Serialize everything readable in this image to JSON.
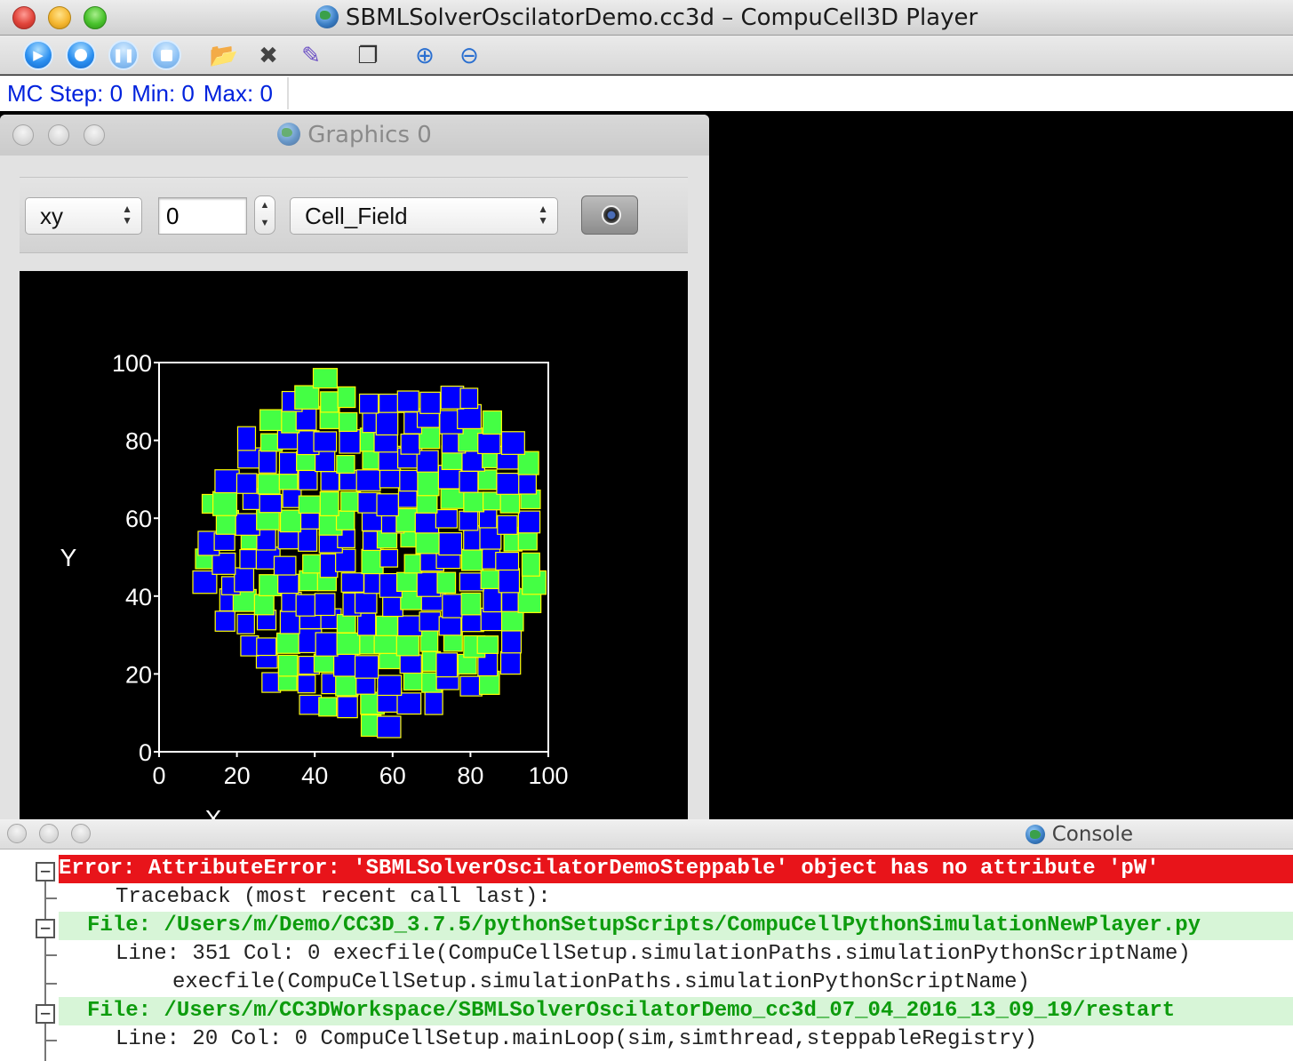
{
  "window": {
    "title": "SBMLSolverOscilatorDemo.cc3d – CompuCell3D Player"
  },
  "toolbar": {
    "buttons": [
      {
        "name": "run",
        "icon": "play-icon"
      },
      {
        "name": "step",
        "icon": "step-icon"
      },
      {
        "name": "pause",
        "icon": "pause-icon"
      },
      {
        "name": "stop",
        "icon": "stop-icon"
      },
      {
        "name": "open",
        "icon": "folder-open-icon"
      },
      {
        "name": "configure",
        "icon": "tools-icon"
      },
      {
        "name": "edit",
        "icon": "edit-icon"
      },
      {
        "name": "new-window",
        "icon": "windows-icon"
      },
      {
        "name": "zoom-in",
        "icon": "zoom-in-icon"
      },
      {
        "name": "zoom-out",
        "icon": "zoom-out-icon"
      }
    ]
  },
  "status": {
    "mc_step": "MC Step: 0",
    "min": "Min: 0",
    "max": "Max: 0"
  },
  "graphics": {
    "title": "Graphics 0",
    "plane": "xy",
    "position": "0",
    "field": "Cell_Field"
  },
  "chart_data": {
    "type": "heatmap",
    "description_field": "Cell_Field",
    "xlabel": "X",
    "ylabel": "Y",
    "xlim": [
      0,
      100
    ],
    "ylim": [
      0,
      100
    ],
    "xticks": [
      "0",
      "20",
      "40",
      "60",
      "80",
      "100"
    ],
    "yticks": [
      "0",
      "20",
      "40",
      "60",
      "80",
      "100"
    ],
    "background": "#000000",
    "colors": {
      "cell_type_1": "#0000ff",
      "cell_type_2": "#44ff44",
      "border": "#ffff00",
      "frame": "#ffffff"
    }
  },
  "console": {
    "title": "Console",
    "lines": [
      {
        "kind": "error",
        "text": "Error: AttributeError: 'SBMLSolverOscilatorDemoSteppable' object has no attribute 'pW'"
      },
      {
        "kind": "plain1",
        "text": "Traceback (most recent call last):"
      },
      {
        "kind": "file",
        "text": "File: /Users/m/Demo/CC3D_3.7.5/pythonSetupScripts/CompuCellPythonSimulationNewPlayer.py"
      },
      {
        "kind": "plain1",
        "text": "Line: 351 Col: 0      execfile(CompuCellSetup.simulationPaths.simulationPythonScriptName)"
      },
      {
        "kind": "plain2",
        "text": "execfile(CompuCellSetup.simulationPaths.simulationPythonScriptName)"
      },
      {
        "kind": "file",
        "text": "File: /Users/m/CC3DWorkspace/SBMLSolverOscilatorDemo_cc3d_07_04_2016_13_09_19/restart"
      },
      {
        "kind": "plain1",
        "text": "Line: 20 Col: 0     CompuCellSetup.mainLoop(sim,simthread,steppableRegistry)"
      }
    ]
  }
}
